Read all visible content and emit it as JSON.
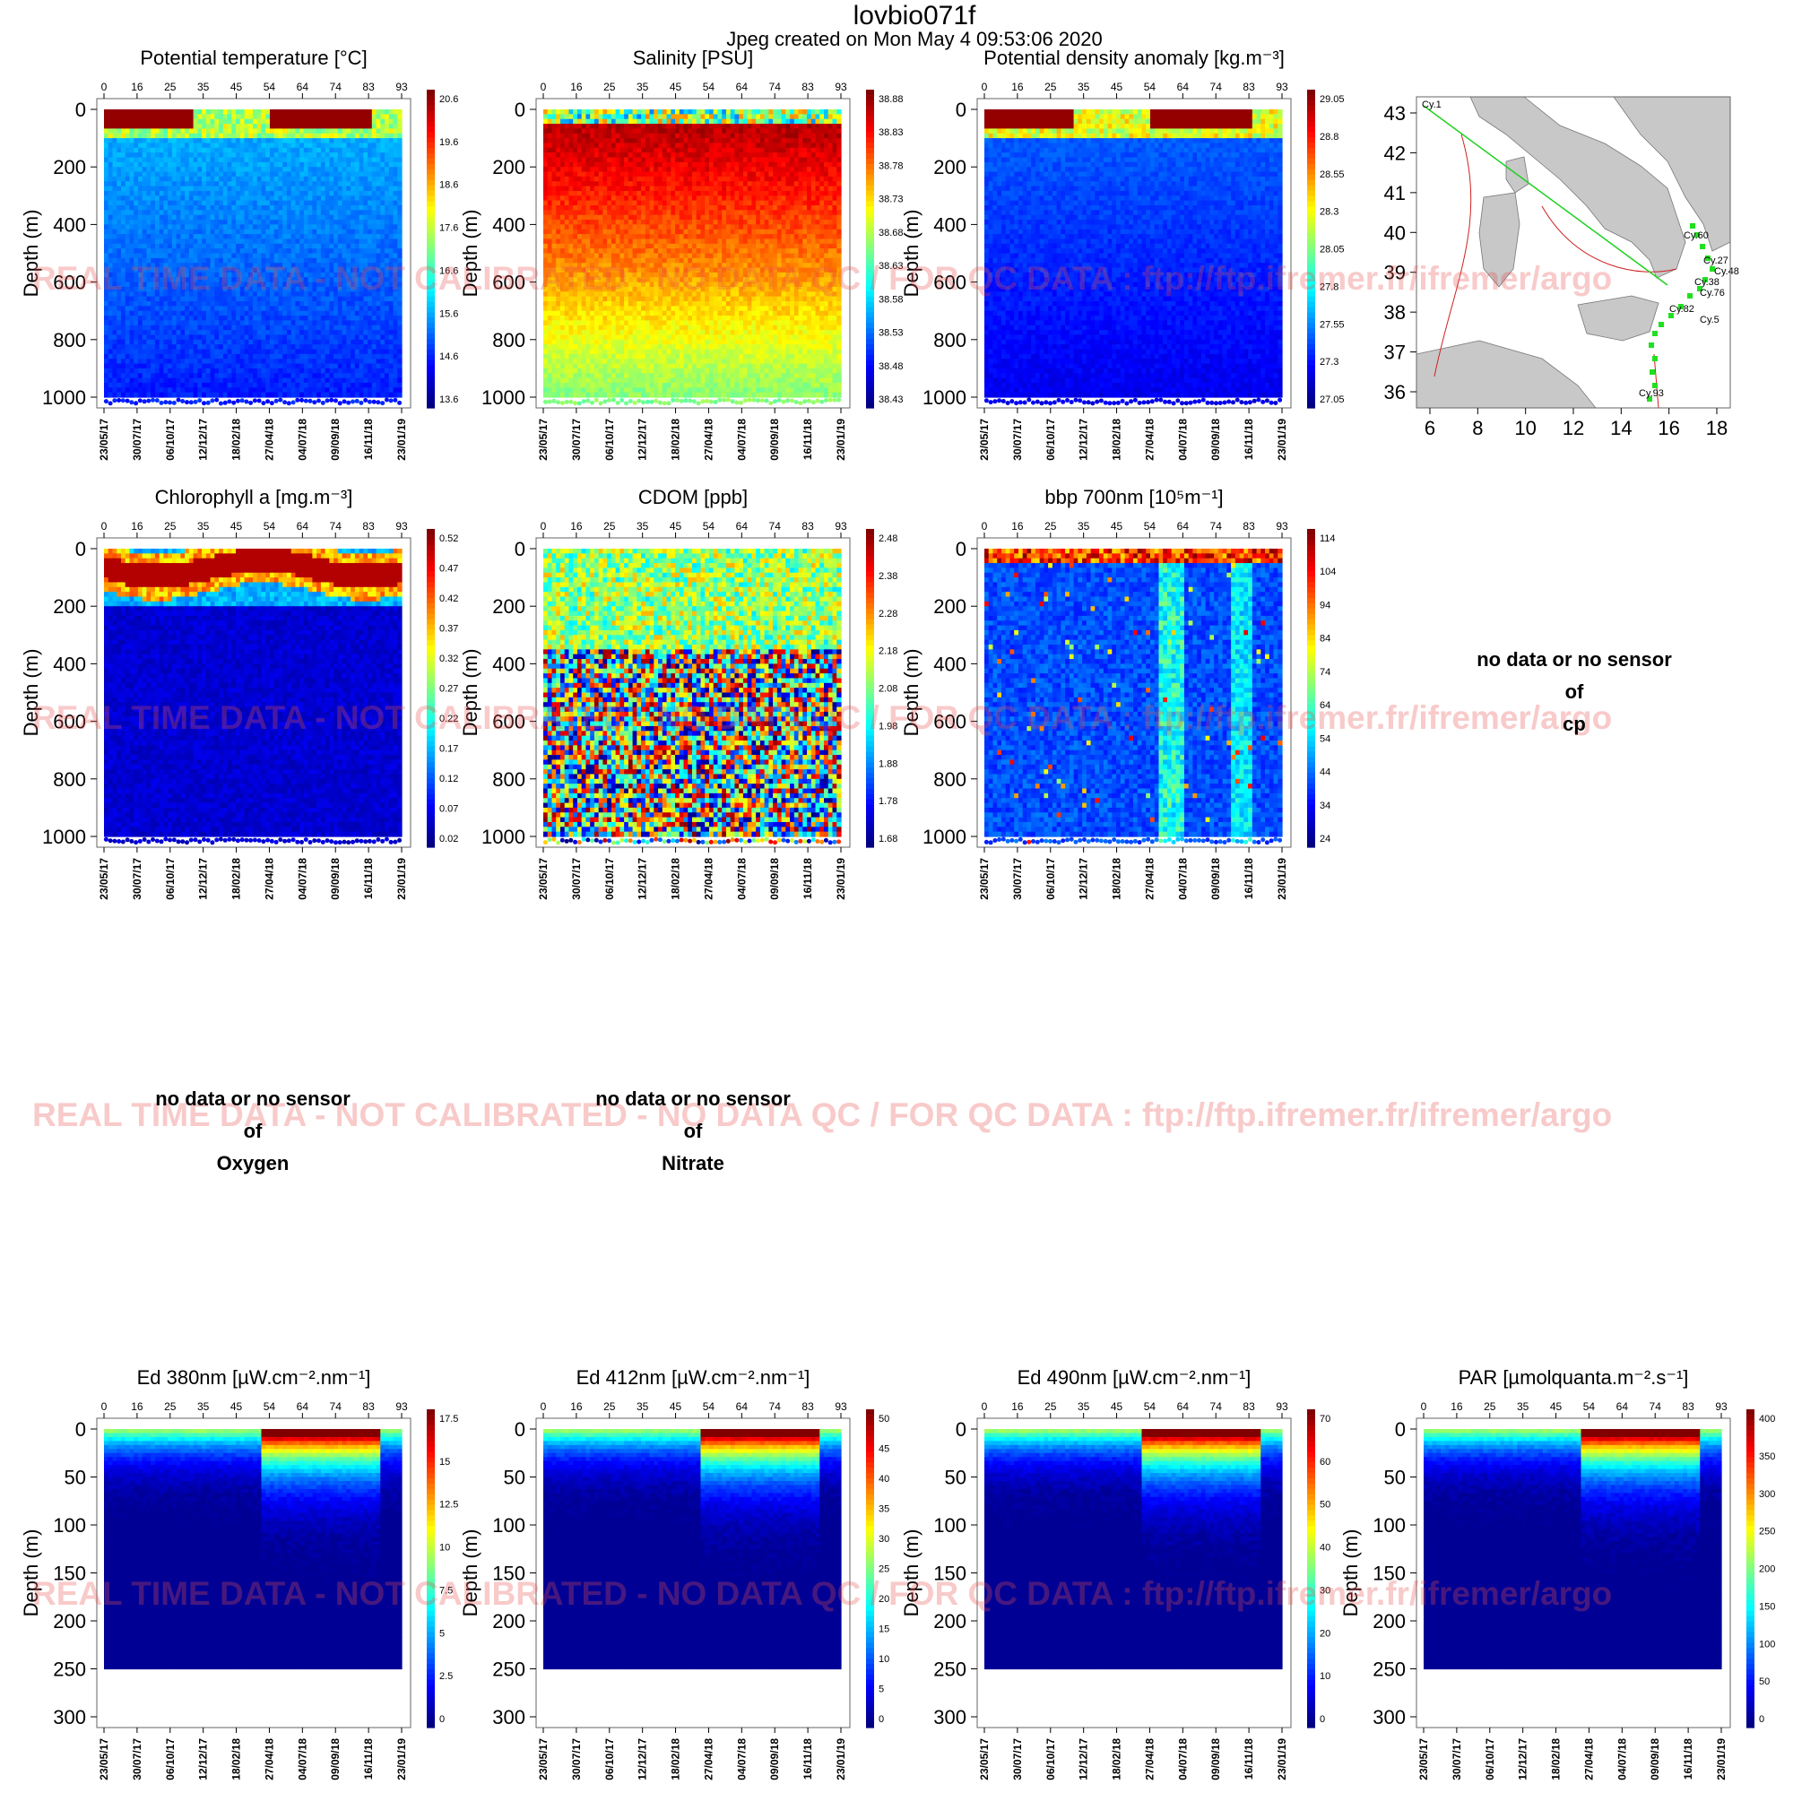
{
  "header": {
    "title": "lovbio071f",
    "subtitle": "Jpeg created on  Mon May  4 09:53:06 2020"
  },
  "common": {
    "top_axis_ticks": [
      "0",
      "16",
      "25",
      "35",
      "45",
      "54",
      "64",
      "74",
      "83",
      "93"
    ],
    "bottom_axis_ticks": [
      "23/05/17",
      "30/07/17",
      "06/10/17",
      "12/12/17",
      "18/02/18",
      "27/04/18",
      "04/07/18",
      "09/09/18",
      "16/11/18",
      "23/01/19"
    ],
    "depth_label": "Depth (m)"
  },
  "watermark": "REAL TIME DATA - NOT CALIBRATED - NO DATA QC   /  FOR QC DATA : ftp://ftp.ifremer.fr/ifremer/argo",
  "nodata": {
    "prefix": "no data or no sensor",
    "of": "of",
    "cp": "cp",
    "oxygen": "Oxygen",
    "nitrate": "Nitrate"
  },
  "chart_data": [
    {
      "id": "temp",
      "type": "heatmap",
      "title": "Potential temperature [°C]",
      "ylabel": "Depth (m)",
      "ylim": [
        1000,
        0
      ],
      "y_ticks": [
        0,
        200,
        400,
        600,
        800,
        1000
      ],
      "colorbar": [
        "20.6",
        "19.6",
        "18.6",
        "17.6",
        "16.6",
        "15.6",
        "14.6",
        "13.6"
      ],
      "range": [
        13.6,
        20.6
      ]
    },
    {
      "id": "sal",
      "type": "heatmap",
      "title": "Salinity [PSU]",
      "ylabel": "Depth (m)",
      "ylim": [
        1000,
        0
      ],
      "y_ticks": [
        0,
        200,
        400,
        600,
        800,
        1000
      ],
      "colorbar": [
        "38.88",
        "38.83",
        "38.78",
        "38.73",
        "38.68",
        "38.63",
        "38.58",
        "38.53",
        "38.48",
        "38.43"
      ],
      "range": [
        38.43,
        38.88
      ]
    },
    {
      "id": "dens",
      "type": "heatmap",
      "title": "Potential density anomaly [kg.m⁻³]",
      "ylabel": "Depth (m)",
      "ylim": [
        1000,
        0
      ],
      "y_ticks": [
        0,
        200,
        400,
        600,
        800,
        1000
      ],
      "colorbar": [
        "29.05",
        "28.8",
        "28.55",
        "28.3",
        "28.05",
        "27.8",
        "27.55",
        "27.3",
        "27.05"
      ],
      "range": [
        27.05,
        29.05
      ]
    },
    {
      "id": "chl",
      "type": "heatmap",
      "title": "Chlorophyll a [mg.m⁻³]",
      "ylabel": "Depth (m)",
      "ylim": [
        1000,
        0
      ],
      "y_ticks": [
        0,
        200,
        400,
        600,
        800,
        1000
      ],
      "colorbar": [
        "0.52",
        "0.47",
        "0.42",
        "0.37",
        "0.32",
        "0.27",
        "0.22",
        "0.17",
        "0.12",
        "0.07",
        "0.02"
      ],
      "range": [
        0.02,
        0.52
      ]
    },
    {
      "id": "cdom",
      "type": "heatmap",
      "title": "CDOM  [ppb]",
      "ylabel": "Depth (m)",
      "ylim": [
        1000,
        0
      ],
      "y_ticks": [
        0,
        200,
        400,
        600,
        800,
        1000
      ],
      "colorbar": [
        "2.48",
        "2.38",
        "2.28",
        "2.18",
        "2.08",
        "1.98",
        "1.88",
        "1.78",
        "1.68"
      ],
      "range": [
        1.68,
        2.48
      ]
    },
    {
      "id": "bbp",
      "type": "heatmap",
      "title": "bbp 700nm [10⁵m⁻¹]",
      "ylabel": "Depth (m)",
      "ylim": [
        1000,
        0
      ],
      "y_ticks": [
        0,
        200,
        400,
        600,
        800,
        1000
      ],
      "colorbar": [
        "114",
        "104",
        "94",
        "84",
        "74",
        "64",
        "54",
        "44",
        "34",
        "24"
      ],
      "range": [
        24,
        114
      ]
    },
    {
      "id": "ed380",
      "type": "heatmap",
      "title": "Ed 380nm [µW.cm⁻².nm⁻¹]",
      "ylabel": "Depth (m)",
      "ylim": [
        300,
        0
      ],
      "y_ticks": [
        0,
        50,
        100,
        150,
        200,
        250,
        300
      ],
      "colorbar": [
        "17.5",
        "15",
        "12.5",
        "10",
        "7.5",
        "5",
        "2.5",
        "0"
      ],
      "range": [
        0,
        17.5
      ]
    },
    {
      "id": "ed412",
      "type": "heatmap",
      "title": "Ed 412nm [µW.cm⁻².nm⁻¹]",
      "ylabel": "Depth (m)",
      "ylim": [
        300,
        0
      ],
      "y_ticks": [
        0,
        50,
        100,
        150,
        200,
        250,
        300
      ],
      "colorbar": [
        "50",
        "45",
        "40",
        "35",
        "30",
        "25",
        "20",
        "15",
        "10",
        "5",
        "0"
      ],
      "range": [
        0,
        50
      ]
    },
    {
      "id": "ed490",
      "type": "heatmap",
      "title": "Ed 490nm [µW.cm⁻².nm⁻¹]",
      "ylabel": "Depth (m)",
      "ylim": [
        300,
        0
      ],
      "y_ticks": [
        0,
        50,
        100,
        150,
        200,
        250,
        300
      ],
      "colorbar": [
        "70",
        "60",
        "50",
        "40",
        "30",
        "20",
        "10",
        "0"
      ],
      "range": [
        0,
        70
      ]
    },
    {
      "id": "par",
      "type": "heatmap",
      "title": "PAR [µmolquanta.m⁻².s⁻¹]",
      "ylabel": "Depth (m)",
      "ylim": [
        300,
        0
      ],
      "y_ticks": [
        0,
        50,
        100,
        150,
        200,
        250,
        300
      ],
      "colorbar": [
        "400",
        "350",
        "300",
        "250",
        "200",
        "150",
        "100",
        "50",
        "0"
      ],
      "range": [
        0,
        400
      ]
    },
    {
      "id": "map",
      "type": "map",
      "x_ticks": [
        "6",
        "8",
        "10",
        "12",
        "14",
        "16",
        "18"
      ],
      "y_ticks": [
        "43",
        "42",
        "41",
        "40",
        "39",
        "38",
        "37",
        "36"
      ],
      "labels": [
        "Cy.1",
        "Cy.60",
        "Cy.27",
        "Cy.48",
        "Cy.38",
        "Cy.76",
        "Cy.82",
        "Cy.5",
        "Cy.93"
      ]
    }
  ]
}
